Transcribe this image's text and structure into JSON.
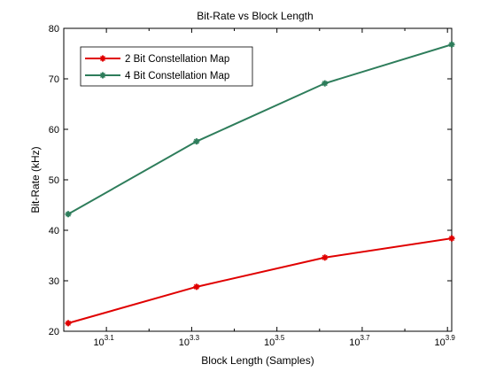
{
  "chart_data": {
    "type": "line",
    "title": "Bit-Rate vs Block Length",
    "xlabel": "Block Length (Samples)",
    "ylabel": "Bit-Rate (kHz)",
    "xscale": "log10",
    "xlim": [
      1000,
      8128
    ],
    "ylim": [
      20,
      80
    ],
    "grid": false,
    "legend_position": "top-left",
    "x_ticks": [
      {
        "exponent": 3.1,
        "base": "10",
        "power": "3.1"
      },
      {
        "exponent": 3.3,
        "base": "10",
        "power": "3.3"
      },
      {
        "exponent": 3.5,
        "base": "10",
        "power": "3.5"
      },
      {
        "exponent": 3.7,
        "base": "10",
        "power": "3.7"
      },
      {
        "exponent": 3.9,
        "base": "10",
        "power": "3.9"
      }
    ],
    "y_ticks": [
      "20",
      "30",
      "40",
      "50",
      "60",
      "70",
      "80"
    ],
    "x": [
      1024,
      2048,
      4096,
      8128
    ],
    "series": [
      {
        "name": "2 Bit Constellation Map",
        "color": "#e00000",
        "values": [
          21.6,
          28.8,
          34.6,
          38.4
        ]
      },
      {
        "name": "4 Bit Constellation Map",
        "color": "#2e7d5b",
        "values": [
          43.2,
          57.6,
          69.1,
          76.8
        ]
      }
    ]
  }
}
